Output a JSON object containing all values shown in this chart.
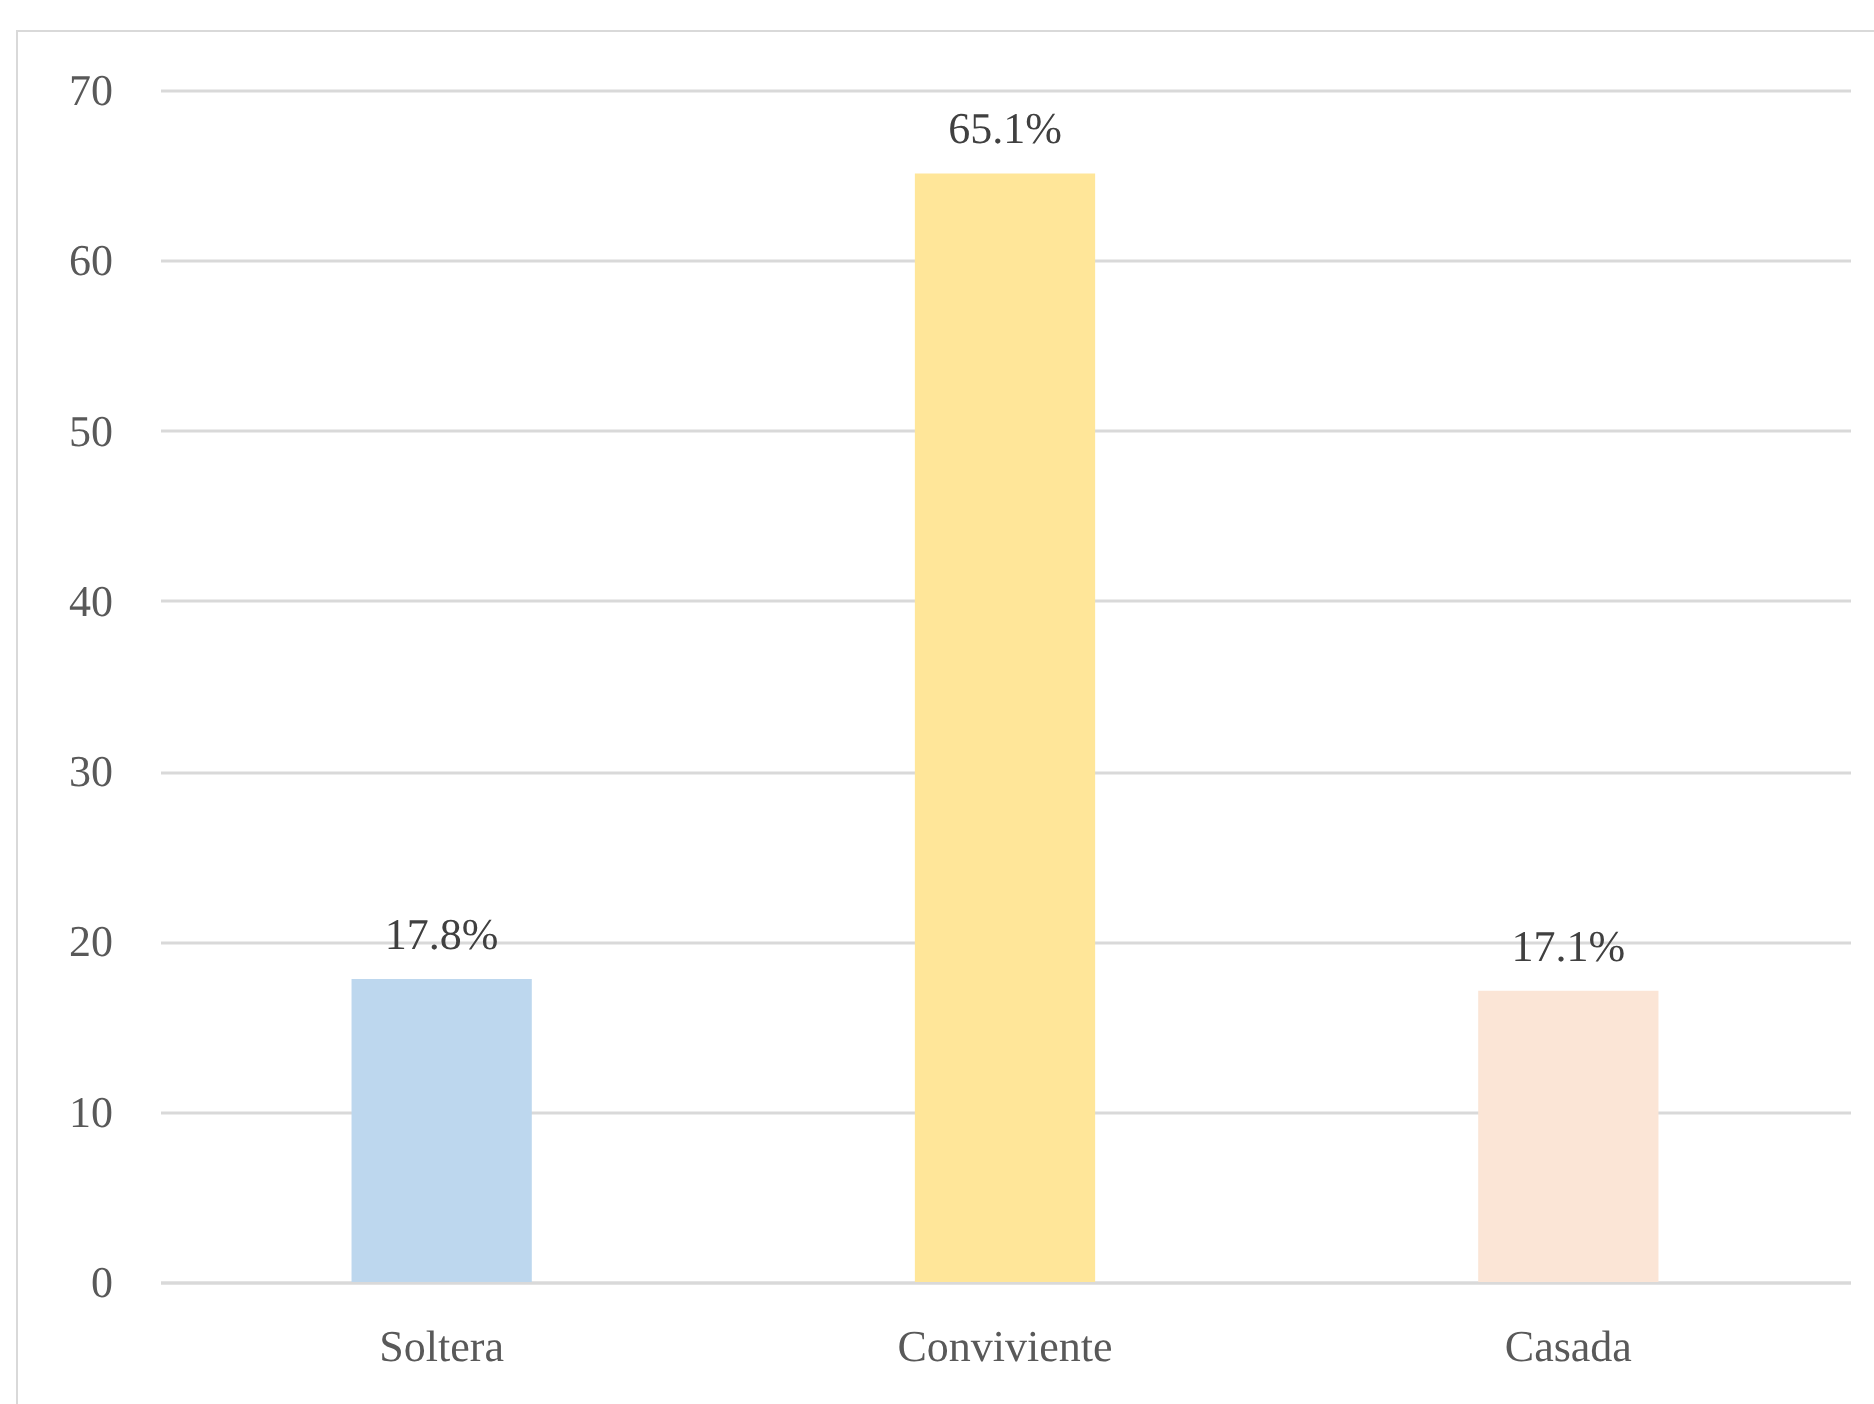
{
  "chart_data": {
    "type": "bar",
    "categories": [
      "Soltera",
      "Conviviente",
      "Casada"
    ],
    "values": [
      17.8,
      65.1,
      17.1
    ],
    "colors": [
      "#bdd7ee",
      "#ffe699",
      "#fbe5d6"
    ],
    "value_labels": [
      "17.8%",
      "65.1%",
      "17.1%"
    ],
    "ylim": [
      0,
      70
    ],
    "yticks": [
      0,
      10,
      20,
      30,
      40,
      50,
      60,
      70
    ],
    "grid": "y",
    "legend": false
  }
}
